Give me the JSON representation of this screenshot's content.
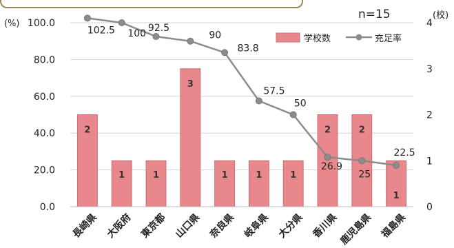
{
  "chart_data": {
    "type": "bar+line",
    "n_label": "n=15",
    "y_left_unit": "(%)",
    "y_right_unit": "(校)",
    "y_left_ticks": [
      "0.0",
      "20.0",
      "40.0",
      "60.0",
      "80.0",
      "100.0"
    ],
    "y_right_ticks": [
      "0",
      "1",
      "2",
      "3",
      "4"
    ],
    "ylim_left": [
      0,
      100
    ],
    "ylim_right": [
      0,
      4
    ],
    "categories": [
      "長崎県",
      "大阪府",
      "東京都",
      "山口県",
      "奈良県",
      "岐阜県",
      "大分県",
      "香川県",
      "鹿児島県",
      "福島県"
    ],
    "series": [
      {
        "name": "学校数",
        "kind": "bar",
        "axis": "right",
        "color": "#e8878c",
        "values": [
          2,
          1,
          1,
          3,
          1,
          1,
          1,
          2,
          2,
          1
        ]
      },
      {
        "name": "充足率",
        "kind": "line",
        "axis": "left",
        "color": "#8c8c8c",
        "values": [
          102.5,
          100,
          92.5,
          90,
          83.8,
          57.5,
          50,
          26.9,
          25,
          22.5
        ],
        "labels": [
          "102.5",
          "100",
          "92.5",
          "90",
          "83.8",
          "57.5",
          "50",
          "26.9",
          "25",
          "22.5"
        ]
      }
    ],
    "legend_position": "top-right",
    "grid": true
  }
}
